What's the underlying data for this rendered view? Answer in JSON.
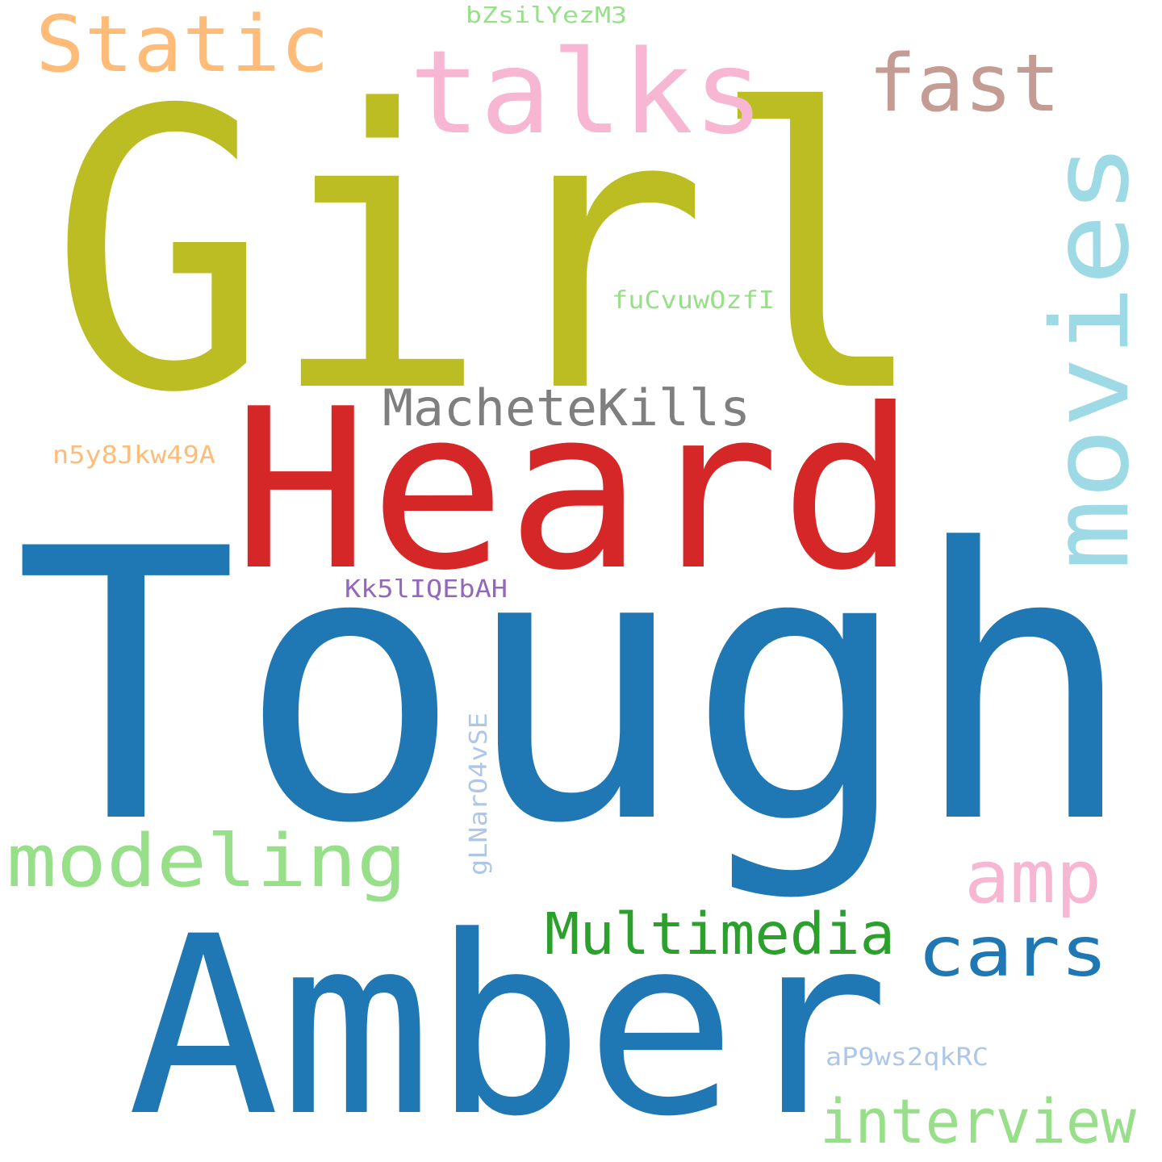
{
  "words": [
    {
      "id": "girl",
      "text": "Girl",
      "color": "#bcbd22"
    },
    {
      "id": "tough",
      "text": "Tough",
      "color": "#1f77b4"
    },
    {
      "id": "heard",
      "text": "Heard",
      "color": "#d62728"
    },
    {
      "id": "amber",
      "text": "Amber",
      "color": "#1f77b4"
    },
    {
      "id": "talks",
      "text": "talks",
      "color": "#f7b6d2"
    },
    {
      "id": "static",
      "text": "Static",
      "color": "#ffbb78"
    },
    {
      "id": "fast",
      "text": "fast",
      "color": "#c49c94"
    },
    {
      "id": "movies",
      "text": "movies",
      "color": "#9edae5"
    },
    {
      "id": "machetekills",
      "text": "MacheteKills",
      "color": "#7f7f7f"
    },
    {
      "id": "modeling",
      "text": "modeling",
      "color": "#98df8a"
    },
    {
      "id": "amp",
      "text": "amp",
      "color": "#f7b6d2"
    },
    {
      "id": "multimedia",
      "text": "Multimedia",
      "color": "#2ca02c"
    },
    {
      "id": "cars",
      "text": "cars",
      "color": "#1f77b4"
    },
    {
      "id": "interview",
      "text": "interview",
      "color": "#98df8a"
    },
    {
      "id": "bzsil",
      "text": "bZsilYezM3",
      "color": "#98df8a"
    },
    {
      "id": "fucvuw",
      "text": "fuCvuwOzfI",
      "color": "#98df8a"
    },
    {
      "id": "n5y8",
      "text": "n5y8Jkw49A",
      "color": "#ffbb78"
    },
    {
      "id": "kk5l",
      "text": "Kk5lIQEbAH",
      "color": "#9467bd"
    },
    {
      "id": "glnar",
      "text": "gLNarO4vSE",
      "color": "#aec7e8"
    },
    {
      "id": "ap9ws",
      "text": "aP9ws2qkRC",
      "color": "#aec7e8"
    }
  ]
}
